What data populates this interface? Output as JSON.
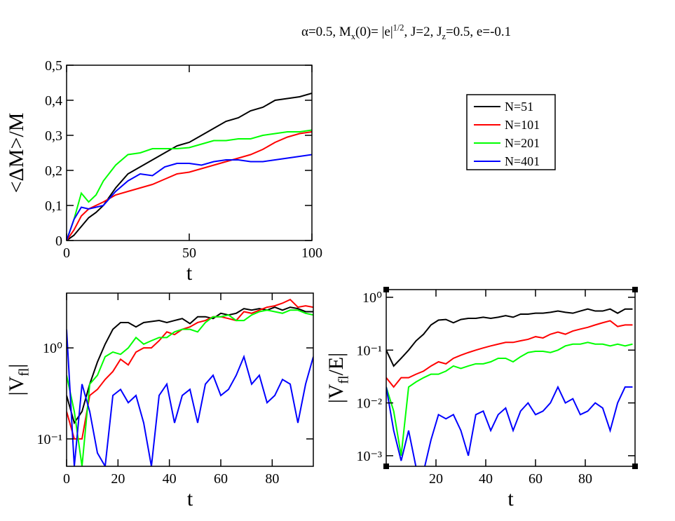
{
  "chart_data": [
    {
      "type": "line",
      "title": [
        {
          "text": "α=0.5, M"
        },
        {
          "text": "x",
          "shift": "sub"
        },
        {
          "text": "(0)= |e|"
        },
        {
          "text": "1/2",
          "shift": "sup"
        },
        {
          "text": ",  J=2, J"
        },
        {
          "text": "z",
          "shift": "sub"
        },
        {
          "text": "=0.5, e=-0.1"
        }
      ],
      "xlabel": [
        {
          "text": "t"
        }
      ],
      "ylabel": [
        {
          "text": "<ΔM>/M"
        }
      ],
      "x": [
        0,
        3,
        6,
        9,
        12,
        15,
        20,
        25,
        30,
        35,
        40,
        45,
        50,
        55,
        60,
        65,
        70,
        75,
        80,
        85,
        90,
        95,
        100
      ],
      "xlim": [
        0,
        100
      ],
      "xticks": [
        0,
        50,
        100
      ],
      "ylim": [
        0,
        0.5
      ],
      "yticks": [
        0,
        {
          "value": 0.1,
          "label": "0,1"
        },
        {
          "value": 0.2,
          "label": "0,2"
        },
        {
          "value": 0.3,
          "label": "0,3"
        },
        {
          "value": 0.4,
          "label": "0,4"
        },
        {
          "value": 0.5,
          "label": "0,5"
        }
      ],
      "legend": true,
      "series": [
        {
          "name": "N=51",
          "color": "#000000",
          "values": [
            0,
            0.015,
            0.04,
            0.065,
            0.08,
            0.1,
            0.15,
            0.19,
            0.21,
            0.23,
            0.25,
            0.27,
            0.28,
            0.3,
            0.32,
            0.34,
            0.35,
            0.37,
            0.38,
            0.4,
            0.405,
            0.41,
            0.42
          ]
        },
        {
          "name": "N=101",
          "color": "#ff0000",
          "values": [
            0,
            0.03,
            0.07,
            0.09,
            0.1,
            0.11,
            0.13,
            0.14,
            0.15,
            0.16,
            0.175,
            0.19,
            0.195,
            0.205,
            0.215,
            0.225,
            0.235,
            0.245,
            0.26,
            0.28,
            0.295,
            0.305,
            0.31
          ]
        },
        {
          "name": "N=201",
          "color": "#00ff00",
          "values": [
            0,
            0.06,
            0.135,
            0.11,
            0.13,
            0.17,
            0.215,
            0.245,
            0.25,
            0.262,
            0.262,
            0.262,
            0.265,
            0.275,
            0.285,
            0.285,
            0.29,
            0.29,
            0.3,
            0.305,
            0.31,
            0.31,
            0.315
          ]
        },
        {
          "name": "N=401",
          "color": "#0000ff",
          "values": [
            0,
            0.06,
            0.095,
            0.09,
            0.095,
            0.1,
            0.14,
            0.17,
            0.19,
            0.185,
            0.21,
            0.22,
            0.22,
            0.215,
            0.225,
            0.23,
            0.23,
            0.225,
            0.225,
            0.23,
            0.235,
            0.24,
            0.245
          ]
        }
      ]
    },
    {
      "type": "line",
      "xlabel": [
        {
          "text": "t"
        }
      ],
      "ylabel": [
        {
          "text": "|V"
        },
        {
          "text": "fl",
          "shift": "sub"
        },
        {
          "text": "|"
        }
      ],
      "x": [
        0,
        3,
        6,
        9,
        12,
        15,
        18,
        21,
        24,
        27,
        30,
        33,
        36,
        39,
        42,
        45,
        48,
        51,
        54,
        57,
        60,
        63,
        66,
        69,
        72,
        75,
        78,
        81,
        84,
        87,
        90,
        93,
        96
      ],
      "xlim": [
        0,
        96
      ],
      "xticks": [
        0,
        20,
        40,
        60,
        80
      ],
      "ylim": [
        0.05,
        4
      ],
      "ylog": true,
      "yticks": [
        {
          "value": 0.1,
          "label": "10⁻¹"
        },
        {
          "value": 1,
          "label": "10⁰"
        }
      ],
      "series": [
        {
          "color": "#000000",
          "values": [
            0.3,
            0.15,
            0.2,
            0.4,
            0.7,
            1.1,
            1.6,
            1.9,
            1.9,
            1.7,
            1.9,
            1.95,
            2.0,
            1.9,
            2.0,
            2.1,
            1.85,
            2.2,
            2.2,
            2.1,
            2.4,
            2.3,
            2.4,
            2.7,
            2.6,
            2.7,
            2.6,
            2.8,
            2.6,
            2.8,
            2.7,
            2.5,
            2.5
          ]
        },
        {
          "color": "#ff0000",
          "values": [
            0.2,
            0.1,
            0.1,
            0.3,
            0.35,
            0.45,
            0.55,
            0.75,
            0.65,
            0.9,
            1.0,
            1.0,
            1.2,
            1.5,
            1.4,
            1.6,
            1.7,
            1.9,
            2.0,
            2.2,
            2.2,
            2.1,
            2.0,
            2.5,
            2.4,
            2.6,
            2.8,
            2.9,
            3.1,
            3.4,
            2.8,
            2.9,
            2.8
          ]
        },
        {
          "color": "#00ff00",
          "values": [
            0.5,
            0.2,
            0.05,
            0.4,
            0.5,
            0.8,
            0.9,
            0.85,
            1.0,
            1.3,
            1.1,
            1.2,
            1.3,
            1.3,
            1.5,
            1.6,
            1.6,
            1.5,
            1.9,
            2.2,
            2.2,
            2.3,
            2.0,
            2.0,
            2.3,
            2.5,
            2.6,
            2.5,
            2.4,
            2.6,
            2.6,
            2.4,
            2.3
          ]
        },
        {
          "color": "#0000ff",
          "values": [
            1.6,
            0.05,
            0.4,
            0.2,
            0.07,
            0.05,
            0.3,
            0.35,
            0.25,
            0.3,
            0.15,
            0.05,
            0.3,
            0.4,
            0.15,
            0.3,
            0.35,
            0.15,
            0.4,
            0.5,
            0.3,
            0.35,
            0.5,
            0.8,
            0.4,
            0.5,
            0.25,
            0.3,
            0.45,
            0.4,
            0.15,
            0.4,
            0.8
          ]
        }
      ]
    },
    {
      "type": "line",
      "xlabel": [
        {
          "text": "t"
        }
      ],
      "ylabel": [
        {
          "text": "|V"
        },
        {
          "text": "fl",
          "shift": "sub"
        },
        {
          "text": "/E|"
        }
      ],
      "x": [
        0,
        3,
        6,
        9,
        12,
        15,
        18,
        21,
        24,
        27,
        30,
        33,
        36,
        39,
        42,
        45,
        48,
        51,
        54,
        57,
        60,
        63,
        66,
        69,
        72,
        75,
        78,
        81,
        84,
        87,
        90,
        93,
        96,
        99
      ],
      "xlim": [
        0,
        100
      ],
      "xticks": [
        20,
        40,
        60,
        80
      ],
      "ylim": [
        0.00063,
        1.4
      ],
      "ylog": true,
      "yticks": [
        {
          "value": 0.001,
          "label": "10⁻³"
        },
        {
          "value": 0.01,
          "label": "10⁻²"
        },
        {
          "value": 0.1,
          "label": "10⁻¹"
        },
        {
          "value": 1,
          "label": "10⁰"
        }
      ],
      "series": [
        {
          "color": "#000000",
          "values": [
            0.1,
            0.05,
            0.07,
            0.1,
            0.15,
            0.2,
            0.3,
            0.37,
            0.38,
            0.33,
            0.38,
            0.4,
            0.4,
            0.42,
            0.4,
            0.42,
            0.45,
            0.42,
            0.48,
            0.48,
            0.5,
            0.5,
            0.52,
            0.55,
            0.52,
            0.5,
            0.55,
            0.6,
            0.55,
            0.55,
            0.6,
            0.5,
            0.6,
            0.6
          ]
        },
        {
          "color": "#ff0000",
          "values": [
            0.03,
            0.02,
            0.03,
            0.03,
            0.035,
            0.04,
            0.05,
            0.06,
            0.055,
            0.07,
            0.08,
            0.09,
            0.1,
            0.11,
            0.12,
            0.13,
            0.14,
            0.14,
            0.15,
            0.16,
            0.18,
            0.17,
            0.2,
            0.22,
            0.2,
            0.23,
            0.25,
            0.27,
            0.3,
            0.33,
            0.36,
            0.28,
            0.3,
            0.3
          ]
        },
        {
          "color": "#00ff00",
          "values": [
            0.02,
            0.007,
            0.001,
            0.02,
            0.025,
            0.03,
            0.035,
            0.035,
            0.04,
            0.05,
            0.045,
            0.05,
            0.055,
            0.055,
            0.06,
            0.07,
            0.07,
            0.06,
            0.075,
            0.09,
            0.095,
            0.095,
            0.09,
            0.1,
            0.12,
            0.13,
            0.13,
            0.14,
            0.13,
            0.13,
            0.12,
            0.13,
            0.12,
            0.13
          ]
        },
        {
          "color": "#0000ff",
          "values": [
            0.02,
            0.003,
            0.0008,
            0.003,
            0.0006,
            0.0005,
            0.002,
            0.006,
            0.005,
            0.006,
            0.003,
            0.001,
            0.006,
            0.007,
            0.003,
            0.006,
            0.008,
            0.003,
            0.007,
            0.01,
            0.006,
            0.007,
            0.01,
            0.02,
            0.01,
            0.012,
            0.006,
            0.007,
            0.01,
            0.008,
            0.003,
            0.01,
            0.02,
            0.02
          ]
        }
      ]
    }
  ]
}
